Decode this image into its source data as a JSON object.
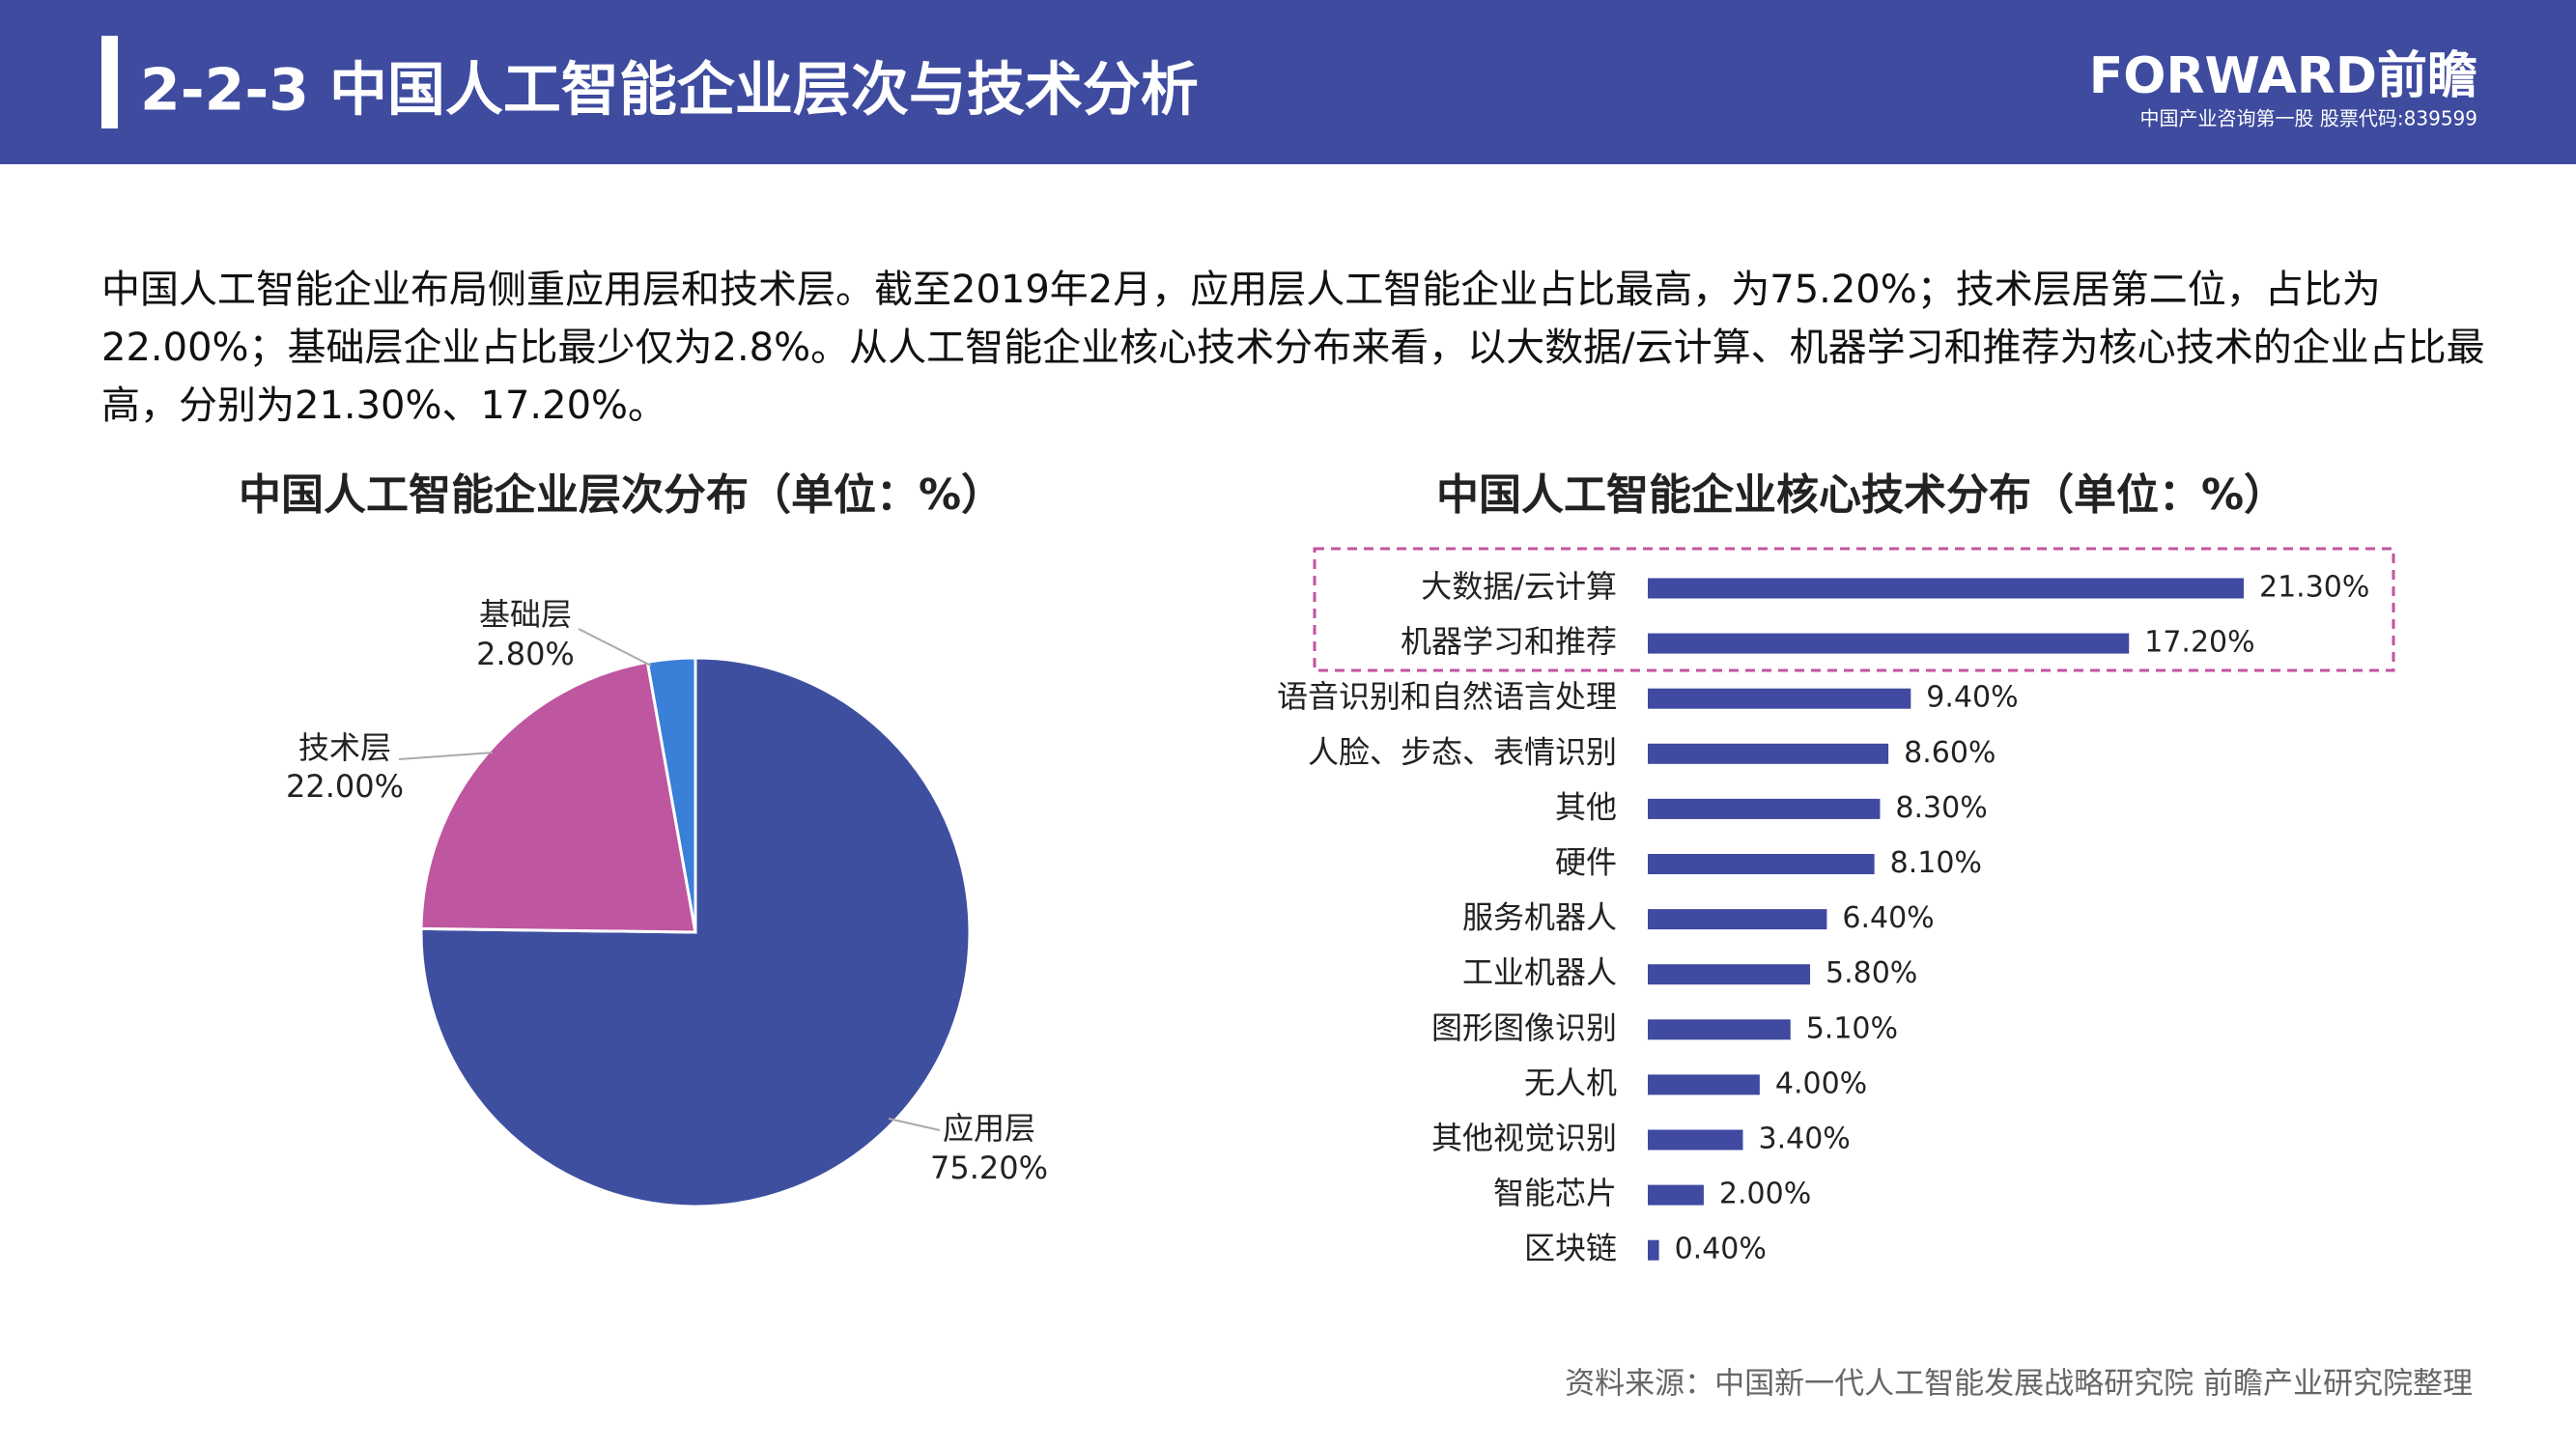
{
  "header": {
    "title": "2-2-3  中国人工智能企业层次与技术分析",
    "logo": "FORWARD前瞻",
    "logo_sub": "中国产业咨询第一股  股票代码:839599"
  },
  "paragraph": "中国人工智能企业布局侧重应用层和技术层。截至2019年2月，应用层人工智能企业占比最高，为75.20%；技术层居第二位，占比为22.00%；基础层企业占比最少仅为2.8%。从人工智能企业核心技术分布来看，以大数据/云计算、机器学习和推荐为核心技术的企业占比最高，分别为21.30%、17.20%。",
  "chart_data": [
    {
      "type": "pie",
      "title": "中国人工智能企业层次分布（单位：%）",
      "categories": [
        "应用层",
        "技术层",
        "基础层"
      ],
      "values": [
        75.2,
        22.0,
        2.8
      ],
      "value_labels": [
        "75.20%",
        "22.00%",
        "2.80%"
      ],
      "colors": [
        "#3F4FA0",
        "#BF56A0",
        "#3A7FD8"
      ]
    },
    {
      "type": "barh",
      "title": "中国人工智能企业核心技术分布（单位：%）",
      "categories": [
        "大数据/云计算",
        "机器学习和推荐",
        "语音识别和自然语言处理",
        "人脸、步态、表情识别",
        "其他",
        "硬件",
        "服务机器人",
        "工业机器人",
        "图形图像识别",
        "无人机",
        "其他视觉识别",
        "智能芯片",
        "区块链"
      ],
      "values": [
        21.3,
        17.2,
        9.4,
        8.6,
        8.3,
        8.1,
        6.4,
        5.8,
        5.1,
        4.0,
        3.4,
        2.0,
        0.4
      ],
      "value_labels": [
        "21.30%",
        "17.20%",
        "9.40%",
        "8.60%",
        "8.30%",
        "8.10%",
        "6.40%",
        "5.80%",
        "5.10%",
        "4.00%",
        "3.40%",
        "2.00%",
        "0.40%"
      ],
      "color": "#3F4AA0"
    }
  ],
  "source": "资料来源：中国新一代人工智能发展战略研究院 前瞻产业研究院整理"
}
